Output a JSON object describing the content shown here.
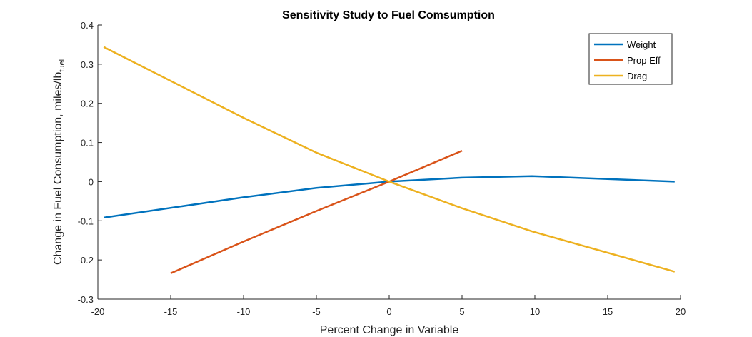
{
  "chart_data": {
    "type": "line",
    "title": "Sensitivity Study to Fuel Comsumption",
    "xlabel": "Percent Change in Variable",
    "ylabel_main": "Change in Fuel Consumption, miles/lb",
    "ylabel_sub": "fuel",
    "xlim": [
      -20,
      20
    ],
    "ylim": [
      -0.3,
      0.4
    ],
    "xticks": [
      -20,
      -15,
      -10,
      -5,
      0,
      5,
      10,
      15,
      20
    ],
    "yticks": [
      -0.3,
      -0.2,
      -0.1,
      0,
      0.1,
      0.2,
      0.3,
      0.4
    ],
    "grid": false,
    "legend_position": "top-right",
    "series": [
      {
        "name": "Weight",
        "color": "#0072BD",
        "x": [
          -19.6,
          -10,
          -5,
          0,
          5,
          9.8,
          19.6
        ],
        "y": [
          -0.092,
          -0.04,
          -0.016,
          0,
          0.01,
          0.014,
          0
        ]
      },
      {
        "name": "Prop Eff",
        "color": "#D95319",
        "x": [
          -15,
          -10,
          -5,
          0,
          5
        ],
        "y": [
          -0.234,
          -0.153,
          -0.075,
          0,
          0.079
        ]
      },
      {
        "name": "Drag",
        "color": "#EDB120",
        "x": [
          -19.6,
          -10,
          -5,
          0,
          5,
          9.8,
          19.6
        ],
        "y": [
          0.344,
          0.163,
          0.074,
          0,
          -0.068,
          -0.127,
          -0.23
        ]
      }
    ]
  }
}
